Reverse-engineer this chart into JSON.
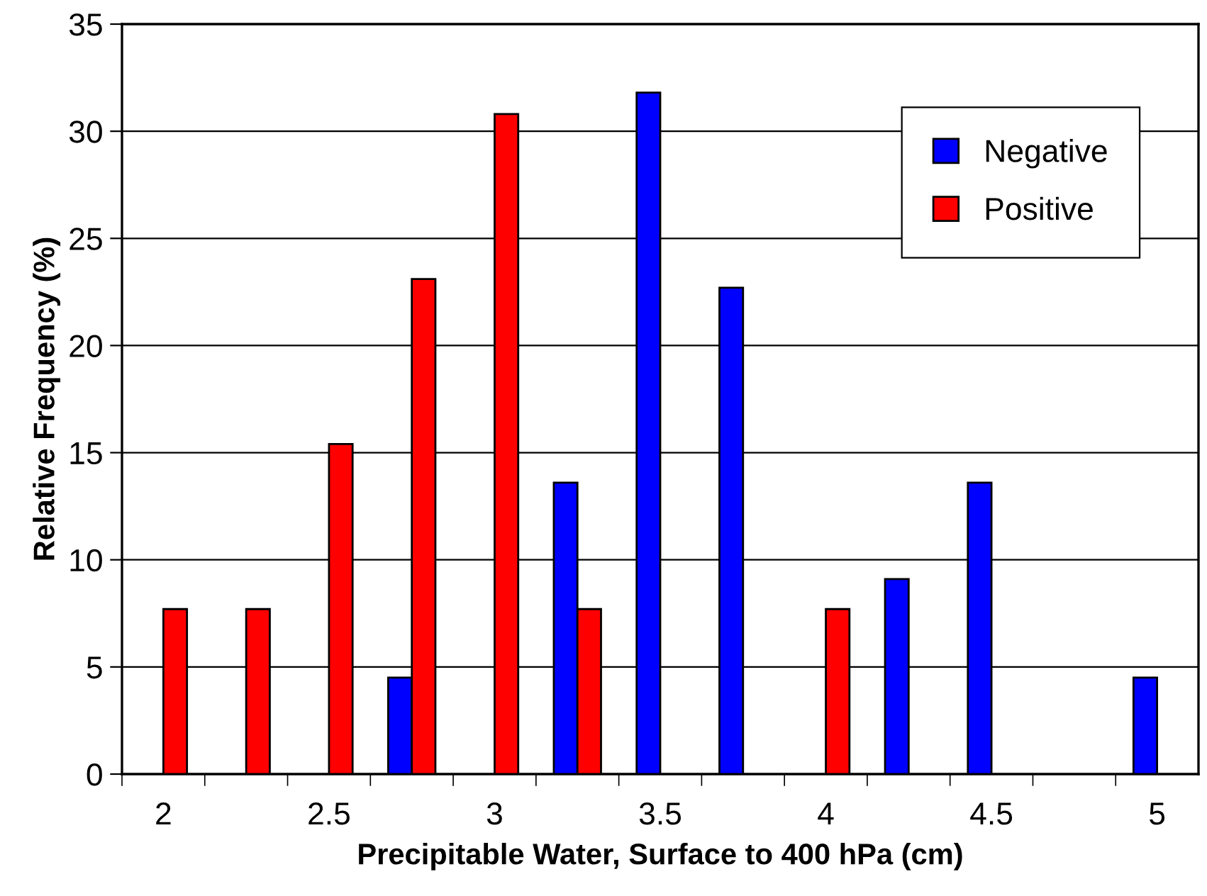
{
  "chart_data": {
    "type": "bar",
    "xlabel": "Precipitable Water, Surface to 400 hPa (cm)",
    "ylabel": "Relative Frequency (%)",
    "categories": [
      "2",
      null,
      "2.5",
      null,
      "3",
      null,
      "3.5",
      null,
      "4",
      null,
      "4.5",
      null,
      "5"
    ],
    "series": [
      {
        "name": "Negative",
        "color": "#0000ff",
        "values": [
          null,
          null,
          null,
          4.5,
          null,
          13.6,
          31.8,
          22.7,
          null,
          9.1,
          13.6,
          null,
          4.5
        ]
      },
      {
        "name": "Positive",
        "color": "#ff0000",
        "values": [
          7.7,
          7.7,
          15.4,
          23.1,
          30.8,
          7.7,
          null,
          null,
          7.7,
          null,
          null,
          null,
          null
        ]
      }
    ],
    "ylim": [
      0,
      35
    ],
    "yticks": [
      0,
      5,
      10,
      15,
      20,
      25,
      30,
      35
    ],
    "grid": "y",
    "legend": "top right"
  }
}
